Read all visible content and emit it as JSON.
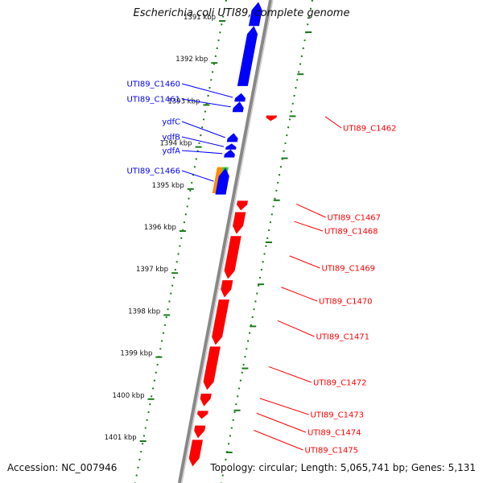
{
  "title": "Escherichia coli UTI89, complete genome",
  "footer": {
    "accession": "Accession: NC_007946",
    "summary": "Topology: circular; Length: 5,065,741 bp; Genes: 5,131"
  },
  "colors": {
    "forward": "#0000ff",
    "reverse": "#ff0000",
    "tick": "#1a7a1a",
    "backbone": "#888888",
    "orange": "#ff8c00",
    "green": "#33cc33"
  },
  "ticks": [
    {
      "label": "1391 kbp",
      "kbp": 1391
    },
    {
      "label": "1392 kbp",
      "kbp": 1392
    },
    {
      "label": "1393 kbp",
      "kbp": 1393
    },
    {
      "label": "1394 kbp",
      "kbp": 1394
    },
    {
      "label": "1395 kbp",
      "kbp": 1395
    },
    {
      "label": "1396 kbp",
      "kbp": 1396
    },
    {
      "label": "1397 kbp",
      "kbp": 1397
    },
    {
      "label": "1398 kbp",
      "kbp": 1398
    },
    {
      "label": "1399 kbp",
      "kbp": 1399
    },
    {
      "label": "1400 kbp",
      "kbp": 1400
    },
    {
      "label": "1401 kbp",
      "kbp": 1401
    }
  ],
  "forward_genes": [
    {
      "label": "",
      "start": 1390.55,
      "end": 1391.12
    },
    {
      "label": "",
      "start": 1391.12,
      "end": 1392.55
    },
    {
      "label": "UTI89_C1460",
      "start": 1392.72,
      "end": 1392.92
    },
    {
      "label": "UTI89_C1461",
      "start": 1392.92,
      "end": 1393.17
    },
    {
      "label": "ydfC",
      "start": 1393.67,
      "end": 1393.88
    },
    {
      "label": "ydfB",
      "start": 1393.92,
      "end": 1394.06
    },
    {
      "label": "ydfA",
      "start": 1394.06,
      "end": 1394.25
    },
    {
      "label": "UTI89_C1466",
      "start": 1394.5,
      "end": 1395.13
    }
  ],
  "special_features": [
    {
      "label": "",
      "start": 1394.48,
      "end": 1395.1,
      "color": "orange"
    },
    {
      "label": "",
      "start": 1394.48,
      "end": 1395.1,
      "color": "green"
    }
  ],
  "reverse_genes": [
    {
      "label": "UTI89_C1462",
      "start": 1393.25,
      "end": 1393.38
    },
    {
      "label": "UTI89_C1467",
      "start": 1395.28,
      "end": 1395.51
    },
    {
      "label": "UTI89_C1468",
      "start": 1395.55,
      "end": 1396.07
    },
    {
      "label": "UTI89_C1469",
      "start": 1396.12,
      "end": 1397.14
    },
    {
      "label": "UTI89_C1470",
      "start": 1397.17,
      "end": 1397.58
    },
    {
      "label": "UTI89_C1471",
      "start": 1397.63,
      "end": 1398.71
    },
    {
      "label": "UTI89_C1472",
      "start": 1398.75,
      "end": 1399.78
    },
    {
      "label": "UTI89_C1473",
      "start": 1399.87,
      "end": 1400.17
    },
    {
      "label": "UTI89_C1474",
      "start": 1400.28,
      "end": 1400.47
    },
    {
      "label": "UTI89_C1475",
      "start": 1400.63,
      "end": 1400.93
    },
    {
      "label": "",
      "start": 1400.97,
      "end": 1401.6
    }
  ]
}
